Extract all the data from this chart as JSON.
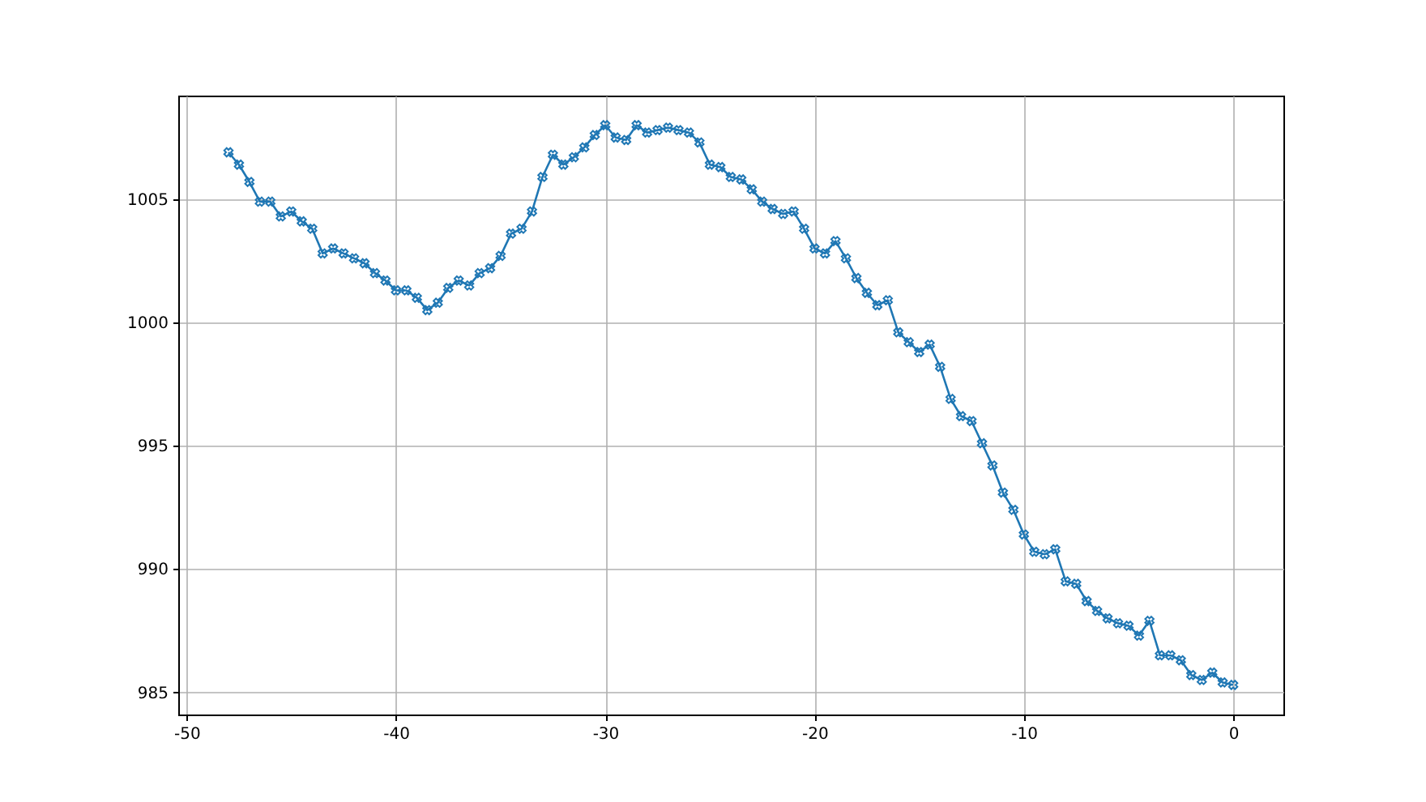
{
  "chart_data": {
    "type": "line",
    "x": [
      -48,
      -47.5,
      -47,
      -46.5,
      -46,
      -45.5,
      -45,
      -44.5,
      -44,
      -43.5,
      -43,
      -42.5,
      -42,
      -41.5,
      -41,
      -40.5,
      -40,
      -39.5,
      -39,
      -38.5,
      -38,
      -37.5,
      -37,
      -36.5,
      -36,
      -35.5,
      -35,
      -34.5,
      -34,
      -33.5,
      -33,
      -32.5,
      -32,
      -31.5,
      -31,
      -30.5,
      -30,
      -29.5,
      -29,
      -28.5,
      -28,
      -27.5,
      -27,
      -26.5,
      -26,
      -25.5,
      -25,
      -24.5,
      -24,
      -23.5,
      -23,
      -22.5,
      -22,
      -21.5,
      -21,
      -20.5,
      -20,
      -19.5,
      -19,
      -18.5,
      -18,
      -17.5,
      -17,
      -16.5,
      -16,
      -15.5,
      -15,
      -14.5,
      -14,
      -13.5,
      -13,
      -12.5,
      -12,
      -11.5,
      -11,
      -10.5,
      -10,
      -9.5,
      -9,
      -8.5,
      -8,
      -7.5,
      -7,
      -6.5,
      -6,
      -5.5,
      -5,
      -4.5,
      -4,
      -3.5,
      -3,
      -2.5,
      -2,
      -1.5,
      -1,
      -0.5,
      0
    ],
    "series": [
      {
        "color": "#1f77b4",
        "values": [
          1006.9,
          1006.4,
          1005.7,
          1004.9,
          1004.9,
          1004.3,
          1004.5,
          1004.1,
          1003.8,
          1002.8,
          1003.0,
          1002.8,
          1002.6,
          1002.4,
          1002.0,
          1001.7,
          1001.3,
          1001.3,
          1001.0,
          1000.5,
          1000.8,
          1001.4,
          1001.7,
          1001.5,
          1002.0,
          1002.2,
          1002.7,
          1003.6,
          1003.8,
          1004.5,
          1005.9,
          1006.8,
          1006.4,
          1006.7,
          1007.1,
          1007.6,
          1008.0,
          1007.5,
          1007.4,
          1008.0,
          1007.7,
          1007.8,
          1007.9,
          1007.8,
          1007.7,
          1007.3,
          1006.4,
          1006.3,
          1005.9,
          1005.8,
          1005.4,
          1004.9,
          1004.6,
          1004.4,
          1004.5,
          1003.8,
          1003.0,
          1002.8,
          1003.3,
          1002.6,
          1001.8,
          1001.2,
          1000.7,
          1000.9,
          999.6,
          999.2,
          998.8,
          999.1,
          998.2,
          996.9,
          996.2,
          996.0,
          995.1,
          994.2,
          993.1,
          992.4,
          991.4,
          990.7,
          990.6,
          990.8,
          989.5,
          989.4,
          988.7,
          988.3,
          988.0,
          987.8,
          987.7,
          987.3,
          987.9,
          986.5,
          986.5,
          986.3,
          985.7,
          985.5,
          985.8,
          985.4,
          985.3
        ]
      }
    ],
    "xlim": [
      -50.4,
      2.4
    ],
    "xticks": [
      -50,
      -40,
      -30,
      -20,
      -10,
      0
    ],
    "ylim": [
      984.1,
      1009.2
    ],
    "yticks": [
      985,
      990,
      995,
      1000,
      1005
    ],
    "grid": true,
    "marker": "cross",
    "line_style": "solid"
  }
}
